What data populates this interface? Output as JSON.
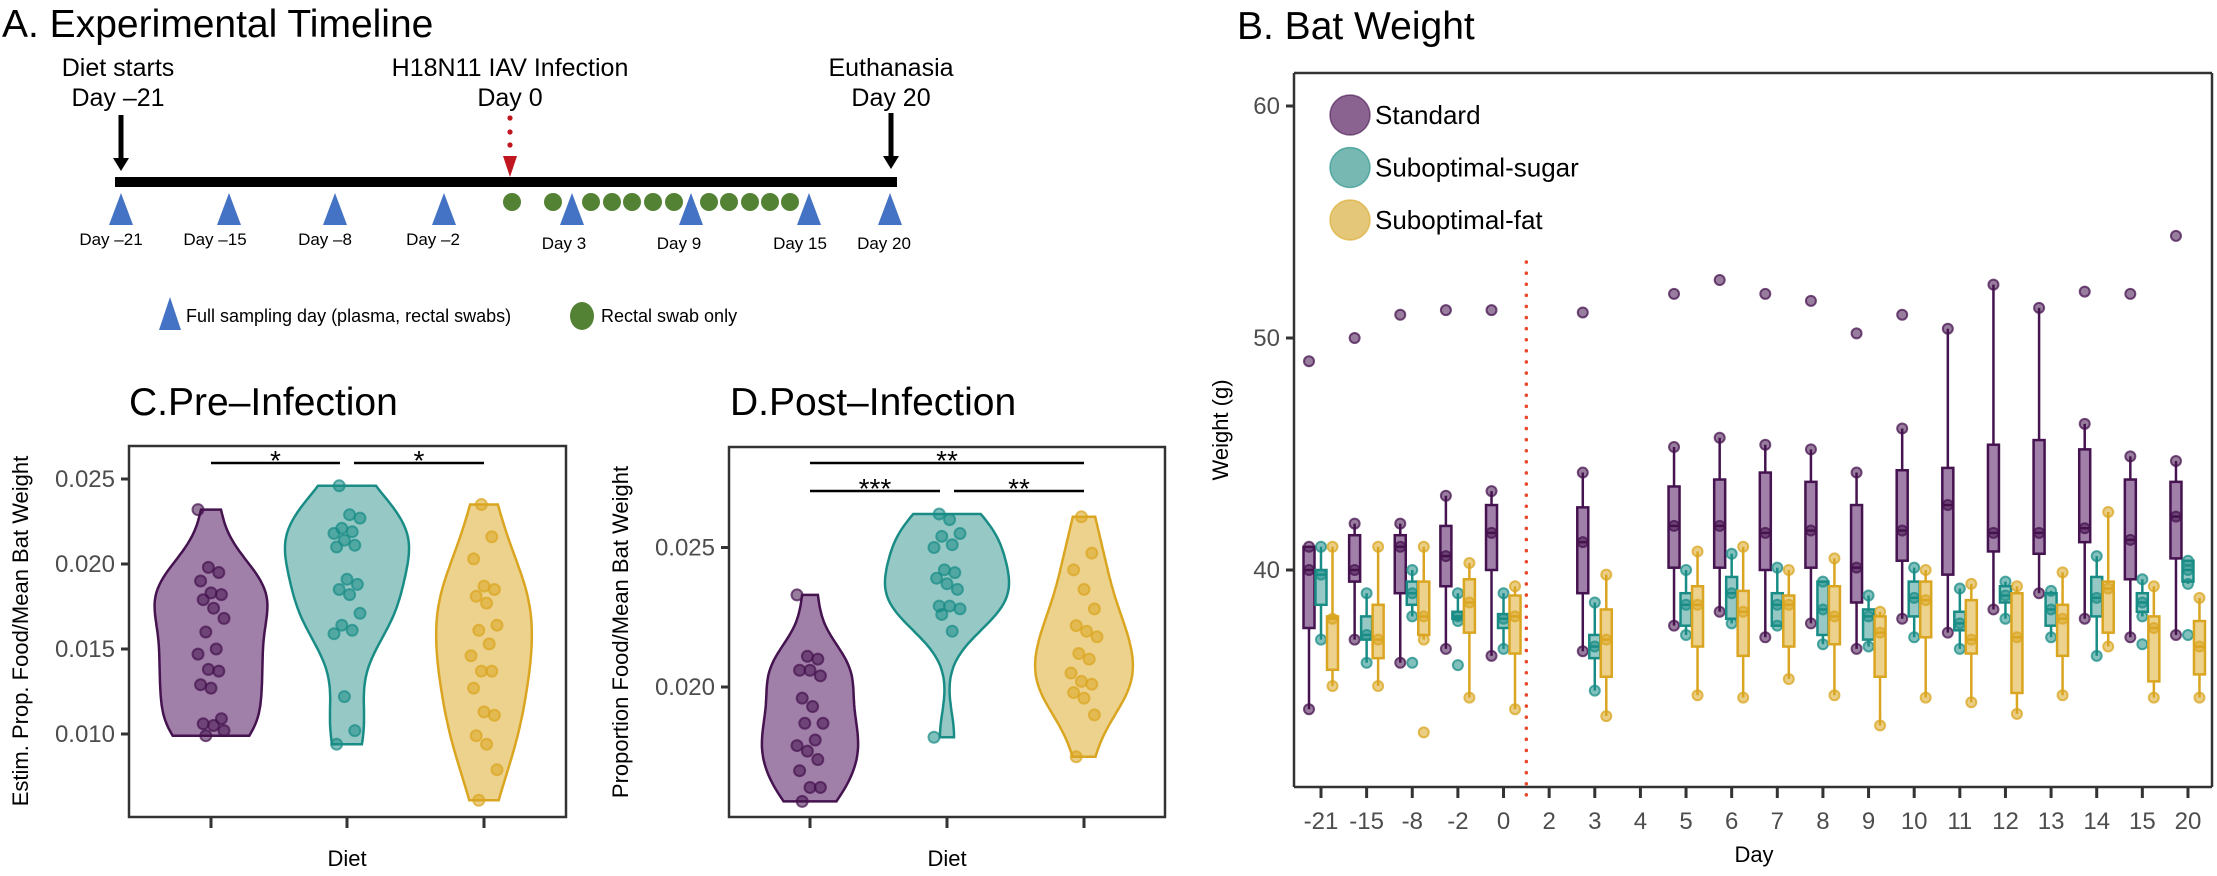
{
  "panel_a": {
    "title": "A. Experimental Timeline",
    "events": [
      {
        "label": "Diet starts",
        "day_label": "Day –21"
      },
      {
        "label": "H18N11 IAV Infection",
        "day_label": "Day 0"
      },
      {
        "label": "Euthanasia",
        "day_label": "Day 20"
      }
    ],
    "full_sampling_days": [
      "Day –21",
      "Day –15",
      "Day –8",
      "Day –2",
      "Day 3",
      "Day 9",
      "Day 15",
      "Day 20"
    ],
    "rectal_swab_markers": 12,
    "legend": {
      "triangle": "Full sampling day (plasma, rectal swabs)",
      "circle": "Rectal swab only"
    },
    "colors": {
      "sampling": "#4472c4",
      "swab": "#548235",
      "infection": "#c0161f",
      "bar": "#000000"
    }
  },
  "colors": {
    "Standard": {
      "stroke": "#45134f",
      "fill": "#a07fa8",
      "legend": "#8a6390"
    },
    "Suboptimal-sugar": {
      "stroke": "#1a8c86",
      "fill": "#96c9c6",
      "legend": "#78b8b2"
    },
    "Suboptimal-fat": {
      "stroke": "#daa520",
      "fill": "#edd28e",
      "legend": "#e5c77a"
    },
    "infection_line": "#e8482b"
  },
  "chart_data": [
    {
      "id": "C",
      "type": "violin",
      "title": "C.Pre–Infection",
      "xlabel": "Diet",
      "ylabel": "Estim. Prop. Food/Mean Bat Weight",
      "yticks": [
        "0.010",
        "0.015",
        "0.020",
        "0.025"
      ],
      "ylim": [
        0.005,
        0.0269
      ],
      "groups": [
        {
          "name": "Standard",
          "values": [
            0.0232,
            0.0198,
            0.0195,
            0.019,
            0.0183,
            0.0182,
            0.0179,
            0.0174,
            0.0168,
            0.016,
            0.015,
            0.0147,
            0.0138,
            0.0137,
            0.0129,
            0.0127,
            0.0109,
            0.0106,
            0.0105,
            0.0102,
            0.0099
          ]
        },
        {
          "name": "Suboptimal-sugar",
          "values": [
            0.0246,
            0.0229,
            0.0227,
            0.0221,
            0.0219,
            0.0218,
            0.0214,
            0.0211,
            0.021,
            0.0191,
            0.0188,
            0.0185,
            0.0182,
            0.0171,
            0.0164,
            0.0161,
            0.0159,
            0.0122,
            0.0102,
            0.0094
          ]
        },
        {
          "name": "Suboptimal-fat",
          "values": [
            0.0235,
            0.0216,
            0.0203,
            0.0187,
            0.0185,
            0.0181,
            0.0177,
            0.0164,
            0.0161,
            0.0153,
            0.0146,
            0.0137,
            0.0137,
            0.0127,
            0.0113,
            0.0111,
            0.0099,
            0.0094,
            0.0079,
            0.0061
          ]
        }
      ],
      "significance": [
        {
          "from": 0,
          "to": 1,
          "level": 1,
          "label": "*"
        },
        {
          "from": 1,
          "to": 2,
          "level": 1,
          "label": "*"
        }
      ]
    },
    {
      "id": "D",
      "type": "violin",
      "title": "D.Post–Infection",
      "xlabel": "Diet",
      "ylabel": "Proportion Food/Mean Bat Weight",
      "yticks": [
        "0.020",
        "0.025"
      ],
      "ylim": [
        0.0153,
        0.0286
      ],
      "groups": [
        {
          "name": "Standard",
          "values": [
            0.0233,
            0.0211,
            0.021,
            0.0206,
            0.0206,
            0.0204,
            0.0196,
            0.0193,
            0.0187,
            0.0187,
            0.0181,
            0.0179,
            0.0177,
            0.0174,
            0.017,
            0.0164,
            0.0164,
            0.0159
          ]
        },
        {
          "name": "Suboptimal-sugar",
          "values": [
            0.0262,
            0.026,
            0.0255,
            0.0254,
            0.0251,
            0.025,
            0.0242,
            0.0241,
            0.0239,
            0.0237,
            0.0235,
            0.0229,
            0.0229,
            0.0228,
            0.0226,
            0.022,
            0.0182
          ]
        },
        {
          "name": "Suboptimal-fat",
          "values": [
            0.0261,
            0.0248,
            0.0242,
            0.0235,
            0.0228,
            0.0222,
            0.022,
            0.0218,
            0.0212,
            0.021,
            0.0205,
            0.0202,
            0.0201,
            0.0198,
            0.0196,
            0.019,
            0.0175
          ]
        }
      ],
      "significance": [
        {
          "from": 0,
          "to": 2,
          "level": 2,
          "label": "**"
        },
        {
          "from": 0,
          "to": 1,
          "level": 1,
          "label": "***"
        },
        {
          "from": 1,
          "to": 2,
          "level": 1,
          "label": "**"
        }
      ]
    },
    {
      "id": "B",
      "type": "box",
      "title": "B. Bat Weight",
      "xlabel": "Day",
      "ylabel": "Weight (g)",
      "categories": [
        "-21",
        "-15",
        "-8",
        "-2",
        "0",
        "2",
        "3",
        "4",
        "5",
        "6",
        "7",
        "8",
        "9",
        "10",
        "11",
        "12",
        "13",
        "14",
        "15",
        "20"
      ],
      "yticks": [
        "40",
        "50",
        "60"
      ],
      "ylim": [
        30.6,
        61.4
      ],
      "infection_line_between": [
        "0",
        "2"
      ],
      "legend": [
        "Standard",
        "Suboptimal-sugar",
        "Suboptimal-fat"
      ],
      "legend_position": "top-left",
      "fields": [
        "min",
        "q1",
        "median",
        "q3",
        "max",
        "outliers"
      ],
      "series": [
        {
          "name": "Standard",
          "boxes": {
            "-21": [
              34.0,
              37.5,
              40.0,
              41.0,
              41.0,
              [
                49.0
              ]
            ],
            "-15": [
              37.0,
              39.5,
              40.0,
              41.5,
              42.0,
              [
                50.0
              ]
            ],
            "-8": [
              36.0,
              39.0,
              41.0,
              41.5,
              42.0,
              [
                51.0
              ]
            ],
            "-2": [
              36.6,
              39.3,
              40.6,
              41.9,
              43.2,
              [
                51.2
              ]
            ],
            "0": [
              36.3,
              40.0,
              41.6,
              42.8,
              43.4,
              [
                51.2
              ]
            ],
            "3": [
              36.5,
              39.0,
              41.2,
              42.7,
              44.2,
              [
                51.1
              ]
            ],
            "5": [
              37.6,
              40.1,
              41.9,
              43.6,
              45.3,
              [
                51.9
              ]
            ],
            "6": [
              38.2,
              40.1,
              41.9,
              43.9,
              45.7,
              [
                52.5
              ]
            ],
            "7": [
              37.1,
              40.0,
              41.6,
              44.2,
              45.4,
              [
                51.9
              ]
            ],
            "8": [
              37.7,
              40.1,
              41.7,
              43.8,
              45.2,
              [
                51.6
              ]
            ],
            "9": [
              36.6,
              38.6,
              40.1,
              42.8,
              44.2,
              [
                50.2
              ]
            ],
            "10": [
              37.9,
              40.4,
              41.7,
              44.3,
              46.1,
              [
                51.0
              ]
            ],
            "11": [
              37.3,
              39.8,
              42.8,
              44.4,
              50.4,
              []
            ],
            "12": [
              38.3,
              40.8,
              41.6,
              45.4,
              52.3,
              []
            ],
            "13": [
              39.0,
              40.7,
              41.6,
              45.6,
              51.3,
              []
            ],
            "14": [
              37.9,
              41.2,
              41.8,
              45.2,
              46.3,
              [
                52.0
              ]
            ],
            "15": [
              37.1,
              39.6,
              41.3,
              43.9,
              44.9,
              [
                51.9
              ]
            ],
            "20": [
              37.2,
              40.5,
              42.3,
              43.8,
              44.7,
              [
                54.4
              ]
            ]
          }
        },
        {
          "name": "Suboptimal-sugar",
          "boxes": {
            "-21": [
              37.0,
              38.5,
              39.8,
              40.0,
              41.0,
              []
            ],
            "-15": [
              36.0,
              37.0,
              37.2,
              38.0,
              39.0,
              []
            ],
            "-8": [
              38.0,
              38.5,
              39.0,
              39.5,
              40.0,
              [
                36.0
              ]
            ],
            "-2": [
              37.8,
              37.9,
              38.0,
              38.2,
              39.0,
              [
                35.9
              ]
            ],
            "0": [
              36.6,
              37.5,
              37.9,
              38.1,
              39.0,
              []
            ],
            "3": [
              34.8,
              36.2,
              36.7,
              37.2,
              38.6,
              []
            ],
            "5": [
              37.2,
              37.6,
              38.5,
              39.0,
              40.0,
              []
            ],
            "6": [
              37.7,
              37.9,
              39.0,
              39.7,
              40.7,
              []
            ],
            "7": [
              37.6,
              37.6,
              38.5,
              39.0,
              40.1,
              []
            ],
            "8": [
              36.8,
              37.2,
              38.3,
              39.5,
              39.5,
              []
            ],
            "9": [
              36.7,
              37.0,
              38.0,
              38.3,
              38.9,
              []
            ],
            "10": [
              37.1,
              38.0,
              38.8,
              39.5,
              40.1,
              []
            ],
            "11": [
              36.6,
              37.4,
              37.7,
              38.2,
              39.2,
              []
            ],
            "12": [
              37.9,
              38.6,
              38.9,
              39.3,
              39.5,
              []
            ],
            "13": [
              37.1,
              37.6,
              38.3,
              39.0,
              39.1,
              []
            ],
            "14": [
              36.3,
              38.0,
              38.8,
              39.7,
              40.6,
              []
            ],
            "15": [
              38.0,
              38.2,
              38.6,
              39.0,
              39.6,
              [
                36.8
              ]
            ],
            "20": [
              39.4,
              39.5,
              40.0,
              40.4,
              40.4,
              [
                37.2
              ]
            ]
          }
        },
        {
          "name": "Suboptimal-fat",
          "boxes": {
            "-21": [
              35.0,
              35.7,
              37.9,
              38.0,
              41.0,
              []
            ],
            "-15": [
              35.0,
              36.2,
              37.0,
              38.5,
              41.0,
              []
            ],
            "-8": [
              37.0,
              37.2,
              38.0,
              39.5,
              41.0,
              [
                33.0
              ]
            ],
            "-2": [
              34.5,
              37.3,
              38.6,
              39.6,
              40.3,
              []
            ],
            "0": [
              34.0,
              36.4,
              38.0,
              38.9,
              39.3,
              []
            ],
            "3": [
              33.7,
              35.4,
              37.0,
              38.3,
              39.8,
              []
            ],
            "5": [
              34.6,
              36.7,
              38.5,
              39.3,
              40.8,
              []
            ],
            "6": [
              34.5,
              36.3,
              38.2,
              39.1,
              41.0,
              []
            ],
            "7": [
              35.3,
              36.7,
              38.5,
              38.9,
              40.0,
              []
            ],
            "8": [
              34.6,
              36.8,
              38.0,
              39.3,
              40.5,
              []
            ],
            "9": [
              33.3,
              35.4,
              37.3,
              38.0,
              38.2,
              []
            ],
            "10": [
              34.5,
              37.1,
              38.7,
              39.5,
              40.0,
              []
            ],
            "11": [
              34.3,
              36.4,
              37.0,
              38.7,
              39.4,
              []
            ],
            "12": [
              33.8,
              34.7,
              37.1,
              39.0,
              39.3,
              []
            ],
            "13": [
              34.6,
              36.3,
              37.9,
              38.5,
              39.9,
              []
            ],
            "14": [
              36.7,
              37.3,
              39.2,
              39.5,
              42.5,
              []
            ],
            "15": [
              34.5,
              35.2,
              37.5,
              38.0,
              39.3,
              []
            ],
            "20": [
              34.5,
              35.5,
              36.7,
              37.8,
              38.8,
              []
            ]
          }
        }
      ]
    }
  ]
}
